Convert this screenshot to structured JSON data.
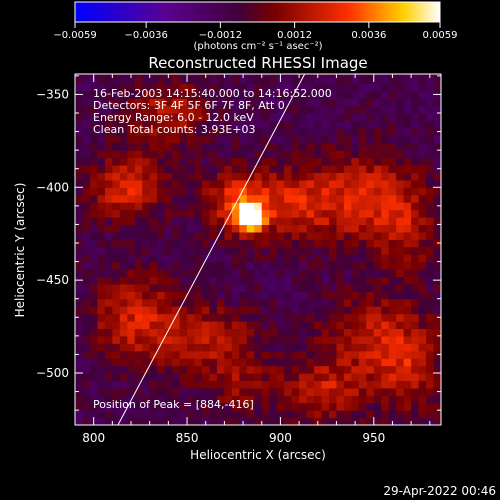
{
  "chart_data": {
    "type": "heatmap",
    "title": "Reconstructed RHESSI Image",
    "xlabel": "Heliocentric X (arcsec)",
    "ylabel": "Heliocentric Y (arcsec)",
    "xlim": [
      790,
      986
    ],
    "ylim": [
      -528,
      -339
    ],
    "x_ticks": [
      800,
      850,
      900,
      950
    ],
    "y_ticks": [
      -350,
      -400,
      -450,
      -500
    ],
    "colorbar": {
      "label": "(photons cm⁻² s⁻¹ asec⁻²)",
      "range": [
        -0.0059,
        0.0059
      ],
      "ticks": [
        "-0.0059",
        "-0.0036",
        "-0.0012",
        "0.0012",
        "0.0036",
        "0.0059"
      ],
      "colormap": "blue-purple-red-yellow-white"
    },
    "annotations": {
      "time": "16-Feb-2003 14:15:40.000 to 14:16:52.000",
      "detectors": "Detectors: 3F 4F 5F 6F 7F 8F, Att 0",
      "energy": "Energy Range: 6.0 - 12.0 keV",
      "method": "Clean    Total counts: 3.93E+03",
      "peak": "Position of Peak = [884,-416]"
    },
    "peak": {
      "x": 884,
      "y": -416
    },
    "limb_line": {
      "x1": 813,
      "y1": -528,
      "x2": 913,
      "y2": -339
    },
    "blobs": [
      {
        "x": 884,
        "y": -416,
        "amp": 1.0,
        "sx": 5,
        "sy": 5
      },
      {
        "x": 876,
        "y": -408,
        "amp": 0.45,
        "sx": 12,
        "sy": 12
      },
      {
        "x": 818,
        "y": -400,
        "amp": 0.45,
        "sx": 14,
        "sy": 12
      },
      {
        "x": 840,
        "y": -360,
        "amp": 0.35,
        "sx": 14,
        "sy": 12
      },
      {
        "x": 908,
        "y": -408,
        "amp": 0.4,
        "sx": 18,
        "sy": 14
      },
      {
        "x": 945,
        "y": -405,
        "amp": 0.4,
        "sx": 16,
        "sy": 16
      },
      {
        "x": 968,
        "y": -420,
        "amp": 0.3,
        "sx": 12,
        "sy": 18
      },
      {
        "x": 822,
        "y": -470,
        "amp": 0.4,
        "sx": 16,
        "sy": 16
      },
      {
        "x": 860,
        "y": -480,
        "amp": 0.35,
        "sx": 18,
        "sy": 12
      },
      {
        "x": 950,
        "y": -480,
        "amp": 0.35,
        "sx": 20,
        "sy": 16
      },
      {
        "x": 925,
        "y": -510,
        "amp": 0.35,
        "sx": 14,
        "sy": 12
      },
      {
        "x": 968,
        "y": -500,
        "amp": 0.3,
        "sx": 12,
        "sy": 16
      },
      {
        "x": 880,
        "y": -505,
        "amp": 0.25,
        "sx": 16,
        "sy": 10
      }
    ],
    "grid": false
  },
  "footer": {
    "timestamp": "29-Apr-2022 00:46"
  }
}
